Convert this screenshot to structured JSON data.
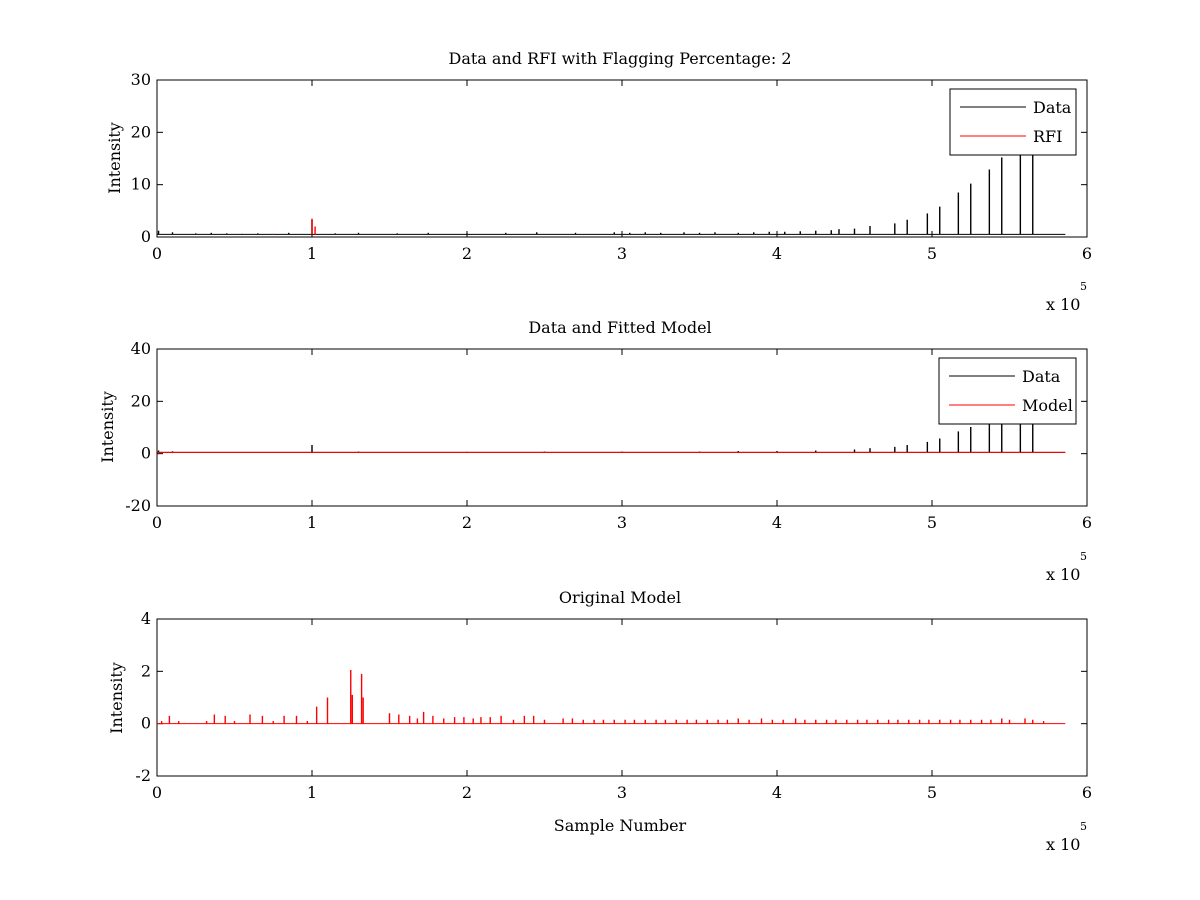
{
  "chart_data": [
    {
      "type": "line",
      "title": "Data and RFI with Flagging Percentage: 2",
      "xlabel": "",
      "ylabel": "Intensity",
      "xlim": [
        0,
        6
      ],
      "ylim": [
        0,
        30
      ],
      "x_multiplier": "x 10",
      "x_multiplier_exponent": "5",
      "x_ticks": [
        "0",
        "1",
        "2",
        "3",
        "4",
        "5",
        "6"
      ],
      "y_ticks": [
        "0",
        "10",
        "20",
        "30"
      ],
      "legend_position": "top-right",
      "baseline": 0.5,
      "series": [
        {
          "name": "Data",
          "color": "#000000",
          "spikes": [
            [
              0.01,
              1.2
            ],
            [
              0.1,
              0.9
            ],
            [
              0.25,
              0.7
            ],
            [
              0.35,
              0.8
            ],
            [
              0.45,
              0.7
            ],
            [
              0.55,
              0.6
            ],
            [
              0.65,
              0.7
            ],
            [
              0.85,
              0.8
            ],
            [
              1.0,
              3.3
            ],
            [
              1.15,
              0.7
            ],
            [
              1.3,
              0.8
            ],
            [
              1.55,
              0.7
            ],
            [
              1.75,
              0.8
            ],
            [
              2.0,
              0.7
            ],
            [
              2.25,
              0.8
            ],
            [
              2.45,
              0.9
            ],
            [
              2.7,
              0.8
            ],
            [
              2.95,
              0.9
            ],
            [
              3.05,
              0.8
            ],
            [
              3.15,
              0.9
            ],
            [
              3.25,
              0.8
            ],
            [
              3.4,
              0.9
            ],
            [
              3.5,
              0.8
            ],
            [
              3.6,
              0.9
            ],
            [
              3.75,
              0.8
            ],
            [
              3.85,
              0.9
            ],
            [
              3.95,
              1.0
            ],
            [
              4.05,
              1.0
            ],
            [
              4.15,
              1.1
            ],
            [
              4.25,
              1.2
            ],
            [
              4.35,
              1.3
            ],
            [
              4.4,
              1.5
            ],
            [
              4.5,
              1.6
            ],
            [
              4.6,
              2.1
            ],
            [
              4.76,
              2.6
            ],
            [
              4.84,
              3.3
            ],
            [
              4.97,
              4.5
            ],
            [
              5.05,
              5.8
            ],
            [
              5.17,
              8.5
            ],
            [
              5.25,
              10.2
            ],
            [
              5.37,
              12.9
            ],
            [
              5.45,
              15.2
            ],
            [
              5.57,
              16.5
            ],
            [
              5.65,
              16.5
            ]
          ]
        },
        {
          "name": "RFI",
          "color": "#ff0000",
          "spikes": [
            [
              0.75,
              0.6
            ],
            [
              1.0,
              3.5
            ],
            [
              1.02,
              2.0
            ]
          ]
        }
      ]
    },
    {
      "type": "line",
      "title": "Data and Fitted Model",
      "xlabel": "",
      "ylabel": "Intensity",
      "xlim": [
        0,
        6
      ],
      "ylim": [
        -20,
        40
      ],
      "x_multiplier": "x 10",
      "x_multiplier_exponent": "5",
      "x_ticks": [
        "0",
        "1",
        "2",
        "3",
        "4",
        "5",
        "6"
      ],
      "y_ticks": [
        "-20",
        "0",
        "20",
        "40"
      ],
      "legend_position": "top-right",
      "baseline": 0.5,
      "series": [
        {
          "name": "Data",
          "color": "#000000",
          "spikes": [
            [
              0.01,
              1.2
            ],
            [
              0.1,
              0.9
            ],
            [
              1.0,
              3.3
            ],
            [
              1.3,
              0.8
            ],
            [
              2.0,
              0.7
            ],
            [
              2.5,
              0.8
            ],
            [
              3.0,
              0.8
            ],
            [
              3.5,
              0.8
            ],
            [
              3.75,
              1.0
            ],
            [
              4.0,
              1.0
            ],
            [
              4.25,
              1.2
            ],
            [
              4.5,
              1.6
            ],
            [
              4.6,
              2.1
            ],
            [
              4.76,
              2.6
            ],
            [
              4.84,
              3.3
            ],
            [
              4.97,
              4.5
            ],
            [
              5.05,
              5.8
            ],
            [
              5.17,
              8.5
            ],
            [
              5.25,
              10.2
            ],
            [
              5.37,
              12.9
            ],
            [
              5.45,
              15.2
            ],
            [
              5.57,
              16.5
            ],
            [
              5.65,
              16.5
            ]
          ]
        },
        {
          "name": "Model",
          "color": "#ff0000",
          "spikes": []
        }
      ]
    },
    {
      "type": "line",
      "title": "Original Model",
      "xlabel": "Sample Number",
      "ylabel": "Intensity",
      "xlim": [
        0,
        6
      ],
      "ylim": [
        -2,
        4
      ],
      "x_multiplier": "x 10",
      "x_multiplier_exponent": "5",
      "x_ticks": [
        "0",
        "1",
        "2",
        "3",
        "4",
        "5",
        "6"
      ],
      "y_ticks": [
        "-2",
        "0",
        "2",
        "4"
      ],
      "legend_position": "none",
      "baseline": 0.0,
      "series": [
        {
          "name": "",
          "color": "#ff0000",
          "spikes": [
            [
              0.03,
              0.1
            ],
            [
              0.08,
              0.3
            ],
            [
              0.14,
              0.1
            ],
            [
              0.32,
              0.1
            ],
            [
              0.37,
              0.35
            ],
            [
              0.44,
              0.3
            ],
            [
              0.5,
              0.1
            ],
            [
              0.6,
              0.35
            ],
            [
              0.68,
              0.3
            ],
            [
              0.75,
              0.1
            ],
            [
              0.82,
              0.3
            ],
            [
              0.9,
              0.3
            ],
            [
              0.97,
              0.1
            ],
            [
              1.03,
              0.65
            ],
            [
              1.1,
              1.0
            ],
            [
              1.25,
              2.05
            ],
            [
              1.26,
              1.1
            ],
            [
              1.32,
              1.9
            ],
            [
              1.33,
              1.0
            ],
            [
              1.5,
              0.4
            ],
            [
              1.56,
              0.35
            ],
            [
              1.63,
              0.3
            ],
            [
              1.68,
              0.2
            ],
            [
              1.72,
              0.45
            ],
            [
              1.78,
              0.3
            ],
            [
              1.85,
              0.2
            ],
            [
              1.92,
              0.25
            ],
            [
              1.98,
              0.25
            ],
            [
              2.04,
              0.2
            ],
            [
              2.09,
              0.25
            ],
            [
              2.15,
              0.25
            ],
            [
              2.22,
              0.3
            ],
            [
              2.3,
              0.15
            ],
            [
              2.37,
              0.3
            ],
            [
              2.43,
              0.3
            ],
            [
              2.5,
              0.15
            ],
            [
              2.62,
              0.2
            ],
            [
              2.68,
              0.2
            ],
            [
              2.75,
              0.15
            ],
            [
              2.82,
              0.15
            ],
            [
              2.88,
              0.15
            ],
            [
              2.95,
              0.15
            ],
            [
              3.02,
              0.15
            ],
            [
              3.08,
              0.15
            ],
            [
              3.15,
              0.15
            ],
            [
              3.22,
              0.15
            ],
            [
              3.28,
              0.15
            ],
            [
              3.35,
              0.15
            ],
            [
              3.42,
              0.15
            ],
            [
              3.48,
              0.15
            ],
            [
              3.55,
              0.15
            ],
            [
              3.62,
              0.15
            ],
            [
              3.68,
              0.15
            ],
            [
              3.75,
              0.2
            ],
            [
              3.82,
              0.15
            ],
            [
              3.9,
              0.2
            ],
            [
              3.97,
              0.15
            ],
            [
              4.04,
              0.15
            ],
            [
              4.12,
              0.2
            ],
            [
              4.18,
              0.15
            ],
            [
              4.25,
              0.15
            ],
            [
              4.32,
              0.15
            ],
            [
              4.38,
              0.15
            ],
            [
              4.45,
              0.15
            ],
            [
              4.52,
              0.15
            ],
            [
              4.58,
              0.15
            ],
            [
              4.65,
              0.15
            ],
            [
              4.72,
              0.15
            ],
            [
              4.78,
              0.15
            ],
            [
              4.85,
              0.15
            ],
            [
              4.92,
              0.15
            ],
            [
              4.98,
              0.15
            ],
            [
              5.05,
              0.15
            ],
            [
              5.12,
              0.15
            ],
            [
              5.18,
              0.15
            ],
            [
              5.25,
              0.15
            ],
            [
              5.32,
              0.15
            ],
            [
              5.38,
              0.15
            ],
            [
              5.45,
              0.2
            ],
            [
              5.5,
              0.15
            ],
            [
              5.6,
              0.2
            ],
            [
              5.65,
              0.15
            ],
            [
              5.72,
              0.1
            ]
          ]
        }
      ]
    }
  ]
}
